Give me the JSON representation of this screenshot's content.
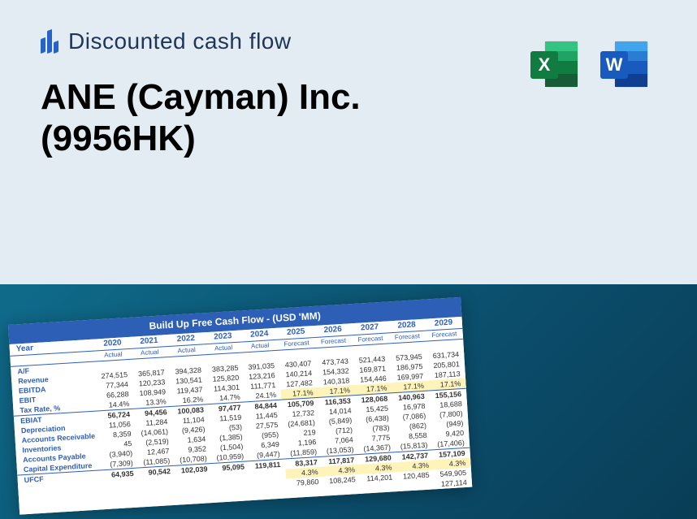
{
  "header": {
    "logo_text": "Discounted cash flow",
    "company_line1": "ANE (Cayman) Inc.",
    "company_line2": "(9956HK)"
  },
  "table": {
    "title": "Build Up Free Cash Flow - (USD 'MM)",
    "row_label_header": "Year",
    "years": [
      "2020",
      "2021",
      "2022",
      "2023",
      "2024",
      "2025",
      "2026",
      "2027",
      "2028",
      "2029"
    ],
    "subheaders": [
      "Actual",
      "Actual",
      "Actual",
      "Actual",
      "Actual",
      "Forecast",
      "Forecast",
      "Forecast",
      "Forecast",
      "Forecast"
    ],
    "rows": [
      {
        "label": "A/F",
        "cells": [
          "",
          "",
          "",
          "",
          "",
          "",
          "",
          "",
          "",
          ""
        ]
      },
      {
        "label": "Revenue",
        "cells": [
          "274,515",
          "365,817",
          "394,328",
          "383,285",
          "391,035",
          "430,407",
          "473,743",
          "521,443",
          "573,945",
          "631,734"
        ]
      },
      {
        "label": "EBITDA",
        "cells": [
          "77,344",
          "120,233",
          "130,541",
          "125,820",
          "123,216",
          "140,214",
          "154,332",
          "169,871",
          "186,975",
          "205,801"
        ]
      },
      {
        "label": "EBIT",
        "cells": [
          "66,288",
          "108,949",
          "119,437",
          "114,301",
          "111,771",
          "127,482",
          "140,318",
          "154,446",
          "169,997",
          "187,113"
        ]
      },
      {
        "label": "Tax Rate, %",
        "cells": [
          "14.4%",
          "13.3%",
          "16.2%",
          "14.7%",
          "24.1%",
          "17.1%",
          "17.1%",
          "17.1%",
          "17.1%",
          "17.1%"
        ],
        "highlight_from": 5
      },
      {
        "label": "EBIAT",
        "cells": [
          "56,724",
          "94,456",
          "100,083",
          "97,477",
          "84,844",
          "105,709",
          "116,353",
          "128,068",
          "140,963",
          "155,156"
        ],
        "bold": true
      },
      {
        "label": "Depreciation",
        "cells": [
          "11,056",
          "11,284",
          "11,104",
          "11,519",
          "11,445",
          "12,732",
          "14,014",
          "15,425",
          "16,978",
          "18,688"
        ]
      },
      {
        "label": "Accounts Receivable",
        "cells": [
          "8,359",
          "(14,061)",
          "(9,426)",
          "(53)",
          "27,575",
          "(24,681)",
          "(5,849)",
          "(6,438)",
          "(7,086)",
          "(7,800)"
        ]
      },
      {
        "label": "Inventories",
        "cells": [
          "45",
          "(2,519)",
          "1,634",
          "(1,385)",
          "(955)",
          "219",
          "(712)",
          "(783)",
          "(862)",
          "(949)"
        ]
      },
      {
        "label": "Accounts Payable",
        "cells": [
          "(3,940)",
          "12,467",
          "9,352",
          "(1,504)",
          "6,349",
          "1,196",
          "7,064",
          "7,775",
          "8,558",
          "9,420"
        ]
      },
      {
        "label": "Capital Expenditure",
        "cells": [
          "(7,309)",
          "(11,085)",
          "(10,708)",
          "(10,959)",
          "(9,447)",
          "(11,859)",
          "(13,053)",
          "(14,367)",
          "(15,813)",
          "(17,406)"
        ]
      },
      {
        "label": "UFCF",
        "cells": [
          "64,935",
          "90,542",
          "102,039",
          "95,095",
          "119,811",
          "83,317",
          "117,817",
          "129,680",
          "142,737",
          "157,109"
        ],
        "bold": true
      },
      {
        "label": "",
        "cells": [
          "",
          "",
          "",
          "",
          "",
          "4.3%",
          "4.3%",
          "4.3%",
          "4.3%",
          "4.3%"
        ],
        "highlight_from": 5
      },
      {
        "label": "",
        "cells": [
          "",
          "",
          "",
          "",
          "",
          "79,860",
          "108,245",
          "114,201",
          "120,485",
          "549,905"
        ]
      },
      {
        "label": "",
        "cells": [
          "",
          "",
          "",
          "",
          "",
          "",
          "",
          "",
          "",
          "127,114"
        ]
      }
    ]
  }
}
